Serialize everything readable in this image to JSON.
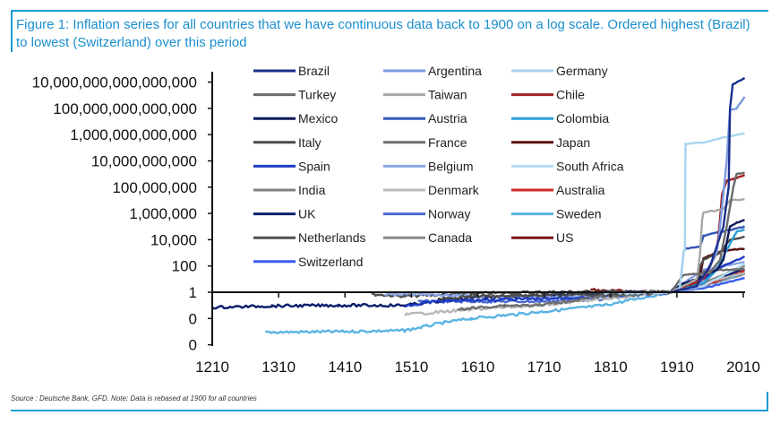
{
  "title": "Figure 1: Inflation series for all countries that we have continuous data back to 1900 on a log scale. Ordered highest (Brazil) to lowest (Switzerland) over this period",
  "source": "Source : Deutsche Bank, GFD. Note: Data is rebased at 1900 for all countries",
  "chart_data": {
    "type": "line",
    "y_scale": "log",
    "xlim": [
      1210,
      2015
    ],
    "ylim": [
      0.0001,
      1e+17
    ],
    "x_ticks": [
      "1210",
      "1310",
      "1410",
      "1510",
      "1610",
      "1710",
      "1810",
      "1910",
      "2010"
    ],
    "y_ticks": [
      {
        "value": 1e+16,
        "label": "10,000,000,000,000,000"
      },
      {
        "value": 100000000000000.0,
        "label": "100,000,000,000,000"
      },
      {
        "value": 1000000000000.0,
        "label": "1,000,000,000,000"
      },
      {
        "value": 10000000000.0,
        "label": "10,000,000,000"
      },
      {
        "value": 100000000.0,
        "label": "100,000,000"
      },
      {
        "value": 1000000.0,
        "label": "1,000,000"
      },
      {
        "value": 10000.0,
        "label": "10,000"
      },
      {
        "value": 100,
        "label": "100"
      },
      {
        "value": 1,
        "label": "1"
      },
      {
        "value": 0.01,
        "label": "0"
      },
      {
        "value": 0.0001,
        "label": "0"
      }
    ],
    "legend_position": "top-center",
    "grid": false,
    "series": [
      {
        "name": "Brazil",
        "color": "#1a2f8c",
        "points": [
          [
            1900,
            1
          ],
          [
            1940,
            3
          ],
          [
            1960,
            100
          ],
          [
            1980,
            100000.0
          ],
          [
            1988,
            100000000.0
          ],
          [
            1990,
            100000000000000.0
          ],
          [
            1994,
            6300000000000000.0
          ],
          [
            2000,
            1e+16
          ],
          [
            2012,
            2e+16
          ]
        ]
      },
      {
        "name": "Argentina",
        "color": "#7d9ae0",
        "points": [
          [
            1900,
            1
          ],
          [
            1940,
            2
          ],
          [
            1970,
            1000
          ],
          [
            1975,
            100000.0
          ],
          [
            1985,
            10000000000.0
          ],
          [
            1990,
            80000000000000.0
          ],
          [
            2000,
            100000000000000.0
          ],
          [
            2012,
            800000000000000.0
          ]
        ]
      },
      {
        "name": "Germany",
        "color": "#a9d4ef",
        "points": [
          [
            1800,
            0.8
          ],
          [
            1900,
            1
          ],
          [
            1914,
            1.5
          ],
          [
            1920,
            1000
          ],
          [
            1922,
            2000
          ],
          [
            1923,
            200000000000.0
          ],
          [
            1950,
            250000000000.0
          ],
          [
            1980,
            600000000000.0
          ],
          [
            2012,
            1200000000000.0
          ]
        ]
      },
      {
        "name": "Turkey",
        "color": "#6b6b6b",
        "points": [
          [
            1900,
            1
          ],
          [
            1920,
            20
          ],
          [
            1960,
            30
          ],
          [
            1975,
            300
          ],
          [
            1985,
            100000.0
          ],
          [
            1995,
            100000000.0
          ],
          [
            2000,
            1000000000.0
          ],
          [
            2012,
            1200000000.0
          ]
        ]
      },
      {
        "name": "Taiwan",
        "color": "#a8a8a8",
        "points": [
          [
            1900,
            1
          ],
          [
            1940,
            10
          ],
          [
            1945,
            1000
          ],
          [
            1948,
            300000.0
          ],
          [
            1950,
            1200000.0
          ],
          [
            1980,
            2000000.0
          ],
          [
            1990,
            10000000.0
          ],
          [
            2012,
            12000000.0
          ]
        ]
      },
      {
        "name": "Chile",
        "color": "#a02020",
        "points": [
          [
            1900,
            1
          ],
          [
            1950,
            10
          ],
          [
            1960,
            100
          ],
          [
            1970,
            1000
          ],
          [
            1974,
            100000.0
          ],
          [
            1978,
            30000000.0
          ],
          [
            1985,
            300000000.0
          ],
          [
            2012,
            800000000.0
          ]
        ]
      },
      {
        "name": "Mexico",
        "color": "#0f1a5a",
        "points": [
          [
            1900,
            1
          ],
          [
            1920,
            5
          ],
          [
            1940,
            10
          ],
          [
            1970,
            50
          ],
          [
            1980,
            300
          ],
          [
            1990,
            100000.0
          ],
          [
            2000,
            200000.0
          ],
          [
            2012,
            300000.0
          ]
        ]
      },
      {
        "name": "Austria",
        "color": "#3456b5",
        "points": [
          [
            1900,
            1
          ],
          [
            1914,
            1.5
          ],
          [
            1920,
            1000
          ],
          [
            1922,
            2000
          ],
          [
            1945,
            3000
          ],
          [
            1950,
            20000.0
          ],
          [
            2012,
            100000.0
          ]
        ]
      },
      {
        "name": "Colombia",
        "color": "#2a9fd6",
        "points": [
          [
            1900,
            1
          ],
          [
            1950,
            5
          ],
          [
            1970,
            50
          ],
          [
            1990,
            5000
          ],
          [
            2000,
            40000.0
          ],
          [
            2012,
            60000.0
          ]
        ]
      },
      {
        "name": "Italy",
        "color": "#4a4a4a",
        "points": [
          [
            1550,
            0.3
          ],
          [
            1600,
            0.5
          ],
          [
            1700,
            0.6
          ],
          [
            1800,
            0.7
          ],
          [
            1900,
            1
          ],
          [
            1940,
            5
          ],
          [
            1945,
            100
          ],
          [
            1950,
            300
          ],
          [
            1975,
            1000
          ],
          [
            1990,
            10000.0
          ],
          [
            2012,
            16000.0
          ]
        ]
      },
      {
        "name": "France",
        "color": "#6e6e6e",
        "points": [
          [
            1580,
            0.05
          ],
          [
            1650,
            0.1
          ],
          [
            1700,
            0.1
          ],
          [
            1800,
            0.5
          ],
          [
            1900,
            1
          ],
          [
            1920,
            4
          ],
          [
            1940,
            10
          ],
          [
            1950,
            40
          ],
          [
            2012,
            60
          ]
        ]
      },
      {
        "name": "Japan",
        "color": "#5a1010",
        "points": [
          [
            1900,
            1
          ],
          [
            1940,
            3
          ],
          [
            1945,
            20
          ],
          [
            1950,
            400
          ],
          [
            1980,
            1500
          ],
          [
            2012,
            2000
          ]
        ]
      },
      {
        "name": "Spain",
        "color": "#1f3cc4",
        "points": [
          [
            1500,
            0.1
          ],
          [
            1550,
            0.2
          ],
          [
            1600,
            0.25
          ],
          [
            1700,
            0.3
          ],
          [
            1800,
            0.5
          ],
          [
            1900,
            1
          ],
          [
            1940,
            3
          ],
          [
            1950,
            10
          ],
          [
            1980,
            100
          ],
          [
            2012,
            500
          ]
        ]
      },
      {
        "name": "Belgium",
        "color": "#8aa6e6",
        "points": [
          [
            1470,
            0.6
          ],
          [
            1500,
            0.8
          ],
          [
            1600,
            0.5
          ],
          [
            1700,
            0.4
          ],
          [
            1800,
            0.6
          ],
          [
            1900,
            1
          ],
          [
            1920,
            5
          ],
          [
            1950,
            50
          ],
          [
            2012,
            200
          ]
        ]
      },
      {
        "name": "South Africa",
        "color": "#b5dcf2",
        "points": [
          [
            1900,
            1
          ],
          [
            1950,
            3
          ],
          [
            1980,
            20
          ],
          [
            2012,
            150
          ]
        ]
      },
      {
        "name": "India",
        "color": "#808080",
        "points": [
          [
            1800,
            0.8
          ],
          [
            1900,
            1
          ],
          [
            1950,
            5
          ],
          [
            2012,
            100
          ]
        ]
      },
      {
        "name": "Denmark",
        "color": "#b8b8b8",
        "points": [
          [
            1500,
            0.02
          ],
          [
            1550,
            0.03
          ],
          [
            1600,
            0.05
          ],
          [
            1700,
            0.1
          ],
          [
            1800,
            0.3
          ],
          [
            1900,
            1
          ],
          [
            1950,
            5
          ],
          [
            2012,
            30
          ]
        ]
      },
      {
        "name": "Australia",
        "color": "#d02a2a",
        "points": [
          [
            1850,
            1
          ],
          [
            1900,
            1
          ],
          [
            1950,
            3
          ],
          [
            2012,
            40
          ]
        ]
      },
      {
        "name": "UK",
        "color": "#0c1d6b",
        "points": [
          [
            1210,
            0.07
          ],
          [
            1300,
            0.09
          ],
          [
            1400,
            0.1
          ],
          [
            1500,
            0.1
          ],
          [
            1550,
            0.2
          ],
          [
            1600,
            0.4
          ],
          [
            1700,
            0.5
          ],
          [
            1800,
            0.9
          ],
          [
            1900,
            1
          ],
          [
            1950,
            4
          ],
          [
            2012,
            60
          ]
        ]
      },
      {
        "name": "Norway",
        "color": "#4a6ad0",
        "points": [
          [
            1520,
            0.2
          ],
          [
            1600,
            0.2
          ],
          [
            1700,
            0.2
          ],
          [
            1800,
            0.3
          ],
          [
            1900,
            1
          ],
          [
            1950,
            4
          ],
          [
            2012,
            60
          ]
        ]
      },
      {
        "name": "Sweden",
        "color": "#5ab4e2",
        "points": [
          [
            1290,
            0.0009
          ],
          [
            1400,
            0.001
          ],
          [
            1500,
            0.0012
          ],
          [
            1560,
            0.005
          ],
          [
            1600,
            0.01
          ],
          [
            1700,
            0.03
          ],
          [
            1800,
            0.1
          ],
          [
            1900,
            1
          ],
          [
            1950,
            3
          ],
          [
            2012,
            30
          ]
        ]
      },
      {
        "name": "Netherlands",
        "color": "#505050",
        "points": [
          [
            1450,
            0.7
          ],
          [
            1500,
            0.5
          ],
          [
            1600,
            0.8
          ],
          [
            1700,
            1
          ],
          [
            1800,
            1.1
          ],
          [
            1900,
            1
          ],
          [
            1950,
            3
          ],
          [
            2012,
            100
          ]
        ]
      },
      {
        "name": "Canada",
        "color": "#8a8a8a",
        "points": [
          [
            1850,
            1
          ],
          [
            1900,
            1
          ],
          [
            1950,
            3
          ],
          [
            2012,
            25
          ]
        ]
      },
      {
        "name": "US",
        "color": "#7a1515",
        "points": [
          [
            1780,
            1.5
          ],
          [
            1800,
            1.3
          ],
          [
            1900,
            1
          ],
          [
            1950,
            3
          ],
          [
            2012,
            25
          ]
        ]
      },
      {
        "name": "Switzerland",
        "color": "#3a5ef0",
        "points": [
          [
            1900,
            1
          ],
          [
            1950,
            2
          ],
          [
            2012,
            12
          ]
        ]
      }
    ]
  }
}
